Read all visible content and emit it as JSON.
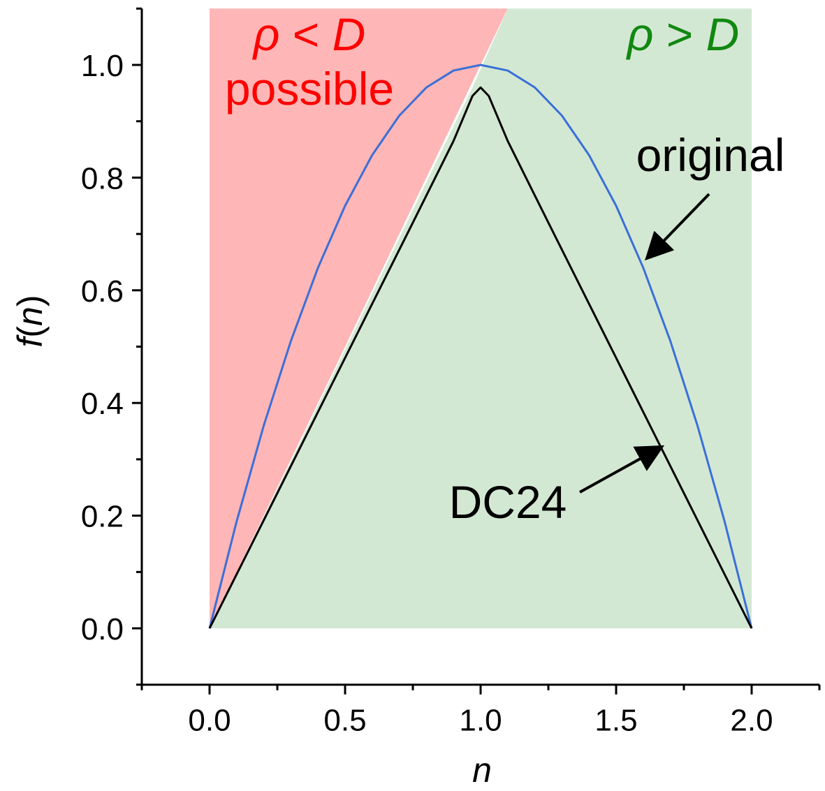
{
  "chart_data": {
    "type": "line",
    "title": "",
    "xlabel": "n",
    "ylabel_parts": {
      "f": "f",
      "open": "(",
      "n": "n",
      "close": ")"
    },
    "xlim": [
      -0.25,
      2.25
    ],
    "ylim": [
      -0.1,
      1.1
    ],
    "x_ticks": [
      0.0,
      0.5,
      1.0,
      1.5,
      2.0
    ],
    "x_tick_labels": [
      "0.0",
      "0.5",
      "1.0",
      "1.5",
      "2.0"
    ],
    "y_ticks": [
      0.0,
      0.2,
      0.4,
      0.6,
      0.8,
      1.0
    ],
    "y_tick_labels": [
      "0.0",
      "0.2",
      "0.4",
      "0.6",
      "0.8",
      "1.0"
    ],
    "grid": false,
    "regions": [
      {
        "name": "rho_lt_D",
        "color": "#ffb6b6",
        "polygon": [
          [
            0.0,
            0.0
          ],
          [
            0.0,
            1.1
          ],
          [
            1.1,
            1.1
          ],
          [
            1.0,
            1.0
          ]
        ]
      },
      {
        "name": "rho_gt_D",
        "color": "#d3e8d3",
        "polygon": [
          [
            0.0,
            0.0
          ],
          [
            0.97,
            0.96
          ],
          [
            1.1,
            1.1
          ],
          [
            2.0,
            1.1
          ],
          [
            2.0,
            0.0
          ]
        ]
      }
    ],
    "series": [
      {
        "name": "original",
        "color": "#3a6fd8",
        "x": [
          0.0,
          0.1,
          0.2,
          0.3,
          0.4,
          0.5,
          0.6,
          0.7,
          0.8,
          0.9,
          1.0,
          1.1,
          1.2,
          1.3,
          1.4,
          1.5,
          1.6,
          1.7,
          1.8,
          1.9,
          2.0
        ],
        "y": [
          0.0,
          0.19,
          0.36,
          0.51,
          0.64,
          0.75,
          0.84,
          0.91,
          0.96,
          0.99,
          1.0,
          0.99,
          0.96,
          0.91,
          0.84,
          0.75,
          0.64,
          0.51,
          0.36,
          0.19,
          0.0
        ]
      },
      {
        "name": "DC24",
        "color": "#000000",
        "x": [
          0.0,
          0.25,
          0.5,
          0.75,
          0.9,
          0.97,
          1.0,
          1.03,
          1.1,
          1.25,
          1.5,
          1.75,
          2.0
        ],
        "y": [
          0.0,
          0.24,
          0.48,
          0.72,
          0.865,
          0.945,
          0.96,
          0.945,
          0.865,
          0.72,
          0.48,
          0.24,
          0.0
        ]
      }
    ],
    "annotations": {
      "rho_lt_D": {
        "rho": "ρ",
        "op": " < ",
        "D": "D",
        "color": "#ff0000"
      },
      "possible": {
        "text": "possible",
        "color": "#ff0000"
      },
      "rho_gt_D": {
        "rho": "ρ",
        "op": " > ",
        "D": "D",
        "color": "#118811"
      },
      "original_label": {
        "text": "original",
        "color": "#000000",
        "arrow_to": [
          1.62,
          0.66
        ]
      },
      "dc24_label": {
        "text": "DC24",
        "color": "#000000",
        "arrow_to": [
          1.66,
          0.32
        ]
      }
    }
  }
}
